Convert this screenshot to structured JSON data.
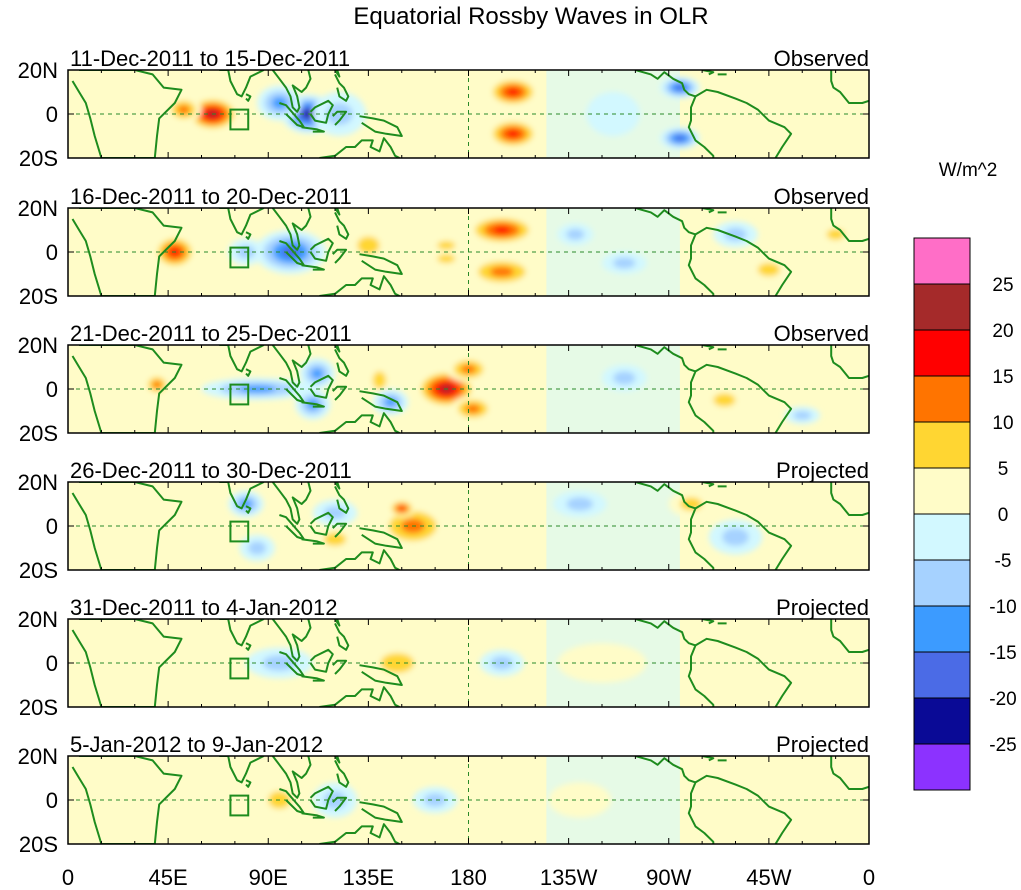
{
  "chart_data": {
    "type": "heatmap",
    "title": "Equatorial Rossby Waves in OLR",
    "units_label": "W/m^2",
    "lat_ticks": [
      "20N",
      "0",
      "20S"
    ],
    "lon_ticks": [
      "0",
      "45E",
      "90E",
      "135E",
      "180",
      "135W",
      "90W",
      "45W",
      "0"
    ],
    "lon_range": [
      0,
      360
    ],
    "lat_range": [
      -20,
      20
    ],
    "colorbar": {
      "levels": [
        "25",
        "20",
        "15",
        "10",
        "5",
        "0",
        "-5",
        "-10",
        "-15",
        "-20",
        "-25"
      ],
      "colors": [
        "#ff6ec7",
        "#a52a2a",
        "#ff0000",
        "#ff7400",
        "#ffd632",
        "#fffcc8",
        "#d2f8ff",
        "#a6d2ff",
        "#3c9bff",
        "#4b6be6",
        "#0a0a96",
        "#8c32ff"
      ]
    },
    "panels": [
      {
        "period": "11-Dec-2011 to 15-Dec-2011",
        "type": "Observed",
        "anomalies": [
          {
            "lon": 65,
            "lat": 0,
            "rx": 12,
            "ry": 8,
            "value": 22
          },
          {
            "lon": 52,
            "lat": 2,
            "rx": 8,
            "ry": 6,
            "value": 12
          },
          {
            "lon": 108,
            "lat": 0,
            "rx": 12,
            "ry": 9,
            "value": -24
          },
          {
            "lon": 95,
            "lat": 5,
            "rx": 10,
            "ry": 8,
            "value": -12
          },
          {
            "lon": 122,
            "lat": 0,
            "rx": 12,
            "ry": 10,
            "value": -8
          },
          {
            "lon": 200,
            "lat": 10,
            "rx": 12,
            "ry": 7,
            "value": 17
          },
          {
            "lon": 200,
            "lat": -9,
            "rx": 12,
            "ry": 7,
            "value": 17
          },
          {
            "lon": 158,
            "lat": 0,
            "rx": 15,
            "ry": 14,
            "value": 4
          },
          {
            "lon": 275,
            "lat": 12,
            "rx": 9,
            "ry": 5,
            "value": -17
          },
          {
            "lon": 275,
            "lat": -11,
            "rx": 9,
            "ry": 5,
            "value": -17
          },
          {
            "lon": 245,
            "lat": 0,
            "rx": 12,
            "ry": 10,
            "value": -4
          },
          {
            "lon": 18,
            "lat": -5,
            "rx": 10,
            "ry": 10,
            "value": 3
          },
          {
            "lon": 330,
            "lat": -8,
            "rx": 14,
            "ry": 8,
            "value": 2
          }
        ]
      },
      {
        "period": "16-Dec-2011 to 20-Dec-2011",
        "type": "Observed",
        "anomalies": [
          {
            "lon": 48,
            "lat": 0,
            "rx": 10,
            "ry": 8,
            "value": 18
          },
          {
            "lon": 100,
            "lat": 0,
            "rx": 16,
            "ry": 10,
            "value": -16
          },
          {
            "lon": 80,
            "lat": 0,
            "rx": 8,
            "ry": 6,
            "value": -8
          },
          {
            "lon": 135,
            "lat": 3,
            "rx": 10,
            "ry": 8,
            "value": 5
          },
          {
            "lon": 195,
            "lat": 10,
            "rx": 16,
            "ry": 7,
            "value": 16
          },
          {
            "lon": 195,
            "lat": -9,
            "rx": 16,
            "ry": 7,
            "value": 14
          },
          {
            "lon": 170,
            "lat": 3,
            "rx": 8,
            "ry": 4,
            "value": 8
          },
          {
            "lon": 170,
            "lat": -3,
            "rx": 8,
            "ry": 4,
            "value": 8
          },
          {
            "lon": 228,
            "lat": 8,
            "rx": 8,
            "ry": 5,
            "value": -7
          },
          {
            "lon": 250,
            "lat": -5,
            "rx": 10,
            "ry": 5,
            "value": -6
          },
          {
            "lon": 300,
            "lat": 8,
            "rx": 10,
            "ry": 6,
            "value": -6
          },
          {
            "lon": 315,
            "lat": -8,
            "rx": 10,
            "ry": 6,
            "value": 6
          },
          {
            "lon": 345,
            "lat": 8,
            "rx": 8,
            "ry": 5,
            "value": 6
          }
        ]
      },
      {
        "period": "21-Dec-2011 to 25-Dec-2011",
        "type": "Observed",
        "anomalies": [
          {
            "lon": 40,
            "lat": 2,
            "rx": 6,
            "ry": 5,
            "value": 12
          },
          {
            "lon": 85,
            "lat": 0,
            "rx": 25,
            "ry": 5,
            "value": -11
          },
          {
            "lon": 112,
            "lat": 7,
            "rx": 8,
            "ry": 7,
            "value": -14
          },
          {
            "lon": 110,
            "lat": -7,
            "rx": 8,
            "ry": 7,
            "value": -12
          },
          {
            "lon": 170,
            "lat": 0,
            "rx": 14,
            "ry": 9,
            "value": 20
          },
          {
            "lon": 180,
            "lat": 9,
            "rx": 10,
            "ry": 6,
            "value": 13
          },
          {
            "lon": 182,
            "lat": -9,
            "rx": 10,
            "ry": 6,
            "value": 11
          },
          {
            "lon": 140,
            "lat": 4,
            "rx": 6,
            "ry": 8,
            "value": 8
          },
          {
            "lon": 145,
            "lat": -6,
            "rx": 8,
            "ry": 6,
            "value": -10
          },
          {
            "lon": 250,
            "lat": 5,
            "rx": 10,
            "ry": 6,
            "value": -7
          },
          {
            "lon": 295,
            "lat": -5,
            "rx": 10,
            "ry": 6,
            "value": 5
          },
          {
            "lon": 330,
            "lat": -12,
            "rx": 8,
            "ry": 4,
            "value": -7
          }
        ]
      },
      {
        "period": "26-Dec-2011 to 30-Dec-2011",
        "type": "Projected",
        "anomalies": [
          {
            "lon": 155,
            "lat": 0,
            "rx": 16,
            "ry": 10,
            "value": 14
          },
          {
            "lon": 150,
            "lat": 8,
            "rx": 6,
            "ry": 4,
            "value": 18
          },
          {
            "lon": 120,
            "lat": -6,
            "rx": 10,
            "ry": 6,
            "value": 6
          },
          {
            "lon": 120,
            "lat": 6,
            "rx": 10,
            "ry": 6,
            "value": -8
          },
          {
            "lon": 80,
            "lat": 10,
            "rx": 8,
            "ry": 6,
            "value": -10
          },
          {
            "lon": 85,
            "lat": -10,
            "rx": 8,
            "ry": 6,
            "value": -9
          },
          {
            "lon": 20,
            "lat": 0,
            "rx": 12,
            "ry": 10,
            "value": 3
          },
          {
            "lon": 280,
            "lat": 10,
            "rx": 10,
            "ry": 6,
            "value": 6
          },
          {
            "lon": 230,
            "lat": 10,
            "rx": 12,
            "ry": 6,
            "value": -6
          },
          {
            "lon": 300,
            "lat": -5,
            "rx": 12,
            "ry": 8,
            "value": -5
          }
        ]
      },
      {
        "period": "31-Dec-2011 to 4-Jan-2012",
        "type": "Projected",
        "anomalies": [
          {
            "lon": 148,
            "lat": 0,
            "rx": 15,
            "ry": 9,
            "value": 8
          },
          {
            "lon": 95,
            "lat": 0,
            "rx": 15,
            "ry": 7,
            "value": -6
          },
          {
            "lon": 195,
            "lat": 0,
            "rx": 10,
            "ry": 6,
            "value": -6
          },
          {
            "lon": 40,
            "lat": 3,
            "rx": 10,
            "ry": 10,
            "value": 3
          },
          {
            "lon": 240,
            "lat": 0,
            "rx": 20,
            "ry": 9,
            "value": 2
          },
          {
            "lon": 310,
            "lat": 5,
            "rx": 15,
            "ry": 8,
            "value": 2
          }
        ]
      },
      {
        "period": "5-Jan-2012 to 9-Jan-2012",
        "type": "Projected",
        "anomalies": [
          {
            "lon": 95,
            "lat": 0,
            "rx": 10,
            "ry": 8,
            "value": 8
          },
          {
            "lon": 120,
            "lat": 0,
            "rx": 10,
            "ry": 8,
            "value": -6
          },
          {
            "lon": 165,
            "lat": 0,
            "rx": 10,
            "ry": 6,
            "value": -7
          },
          {
            "lon": 45,
            "lat": 10,
            "rx": 10,
            "ry": 6,
            "value": 3
          },
          {
            "lon": 300,
            "lat": 0,
            "rx": 20,
            "ry": 12,
            "value": 2
          },
          {
            "lon": 230,
            "lat": 0,
            "rx": 14,
            "ry": 8,
            "value": 2
          }
        ]
      }
    ]
  }
}
